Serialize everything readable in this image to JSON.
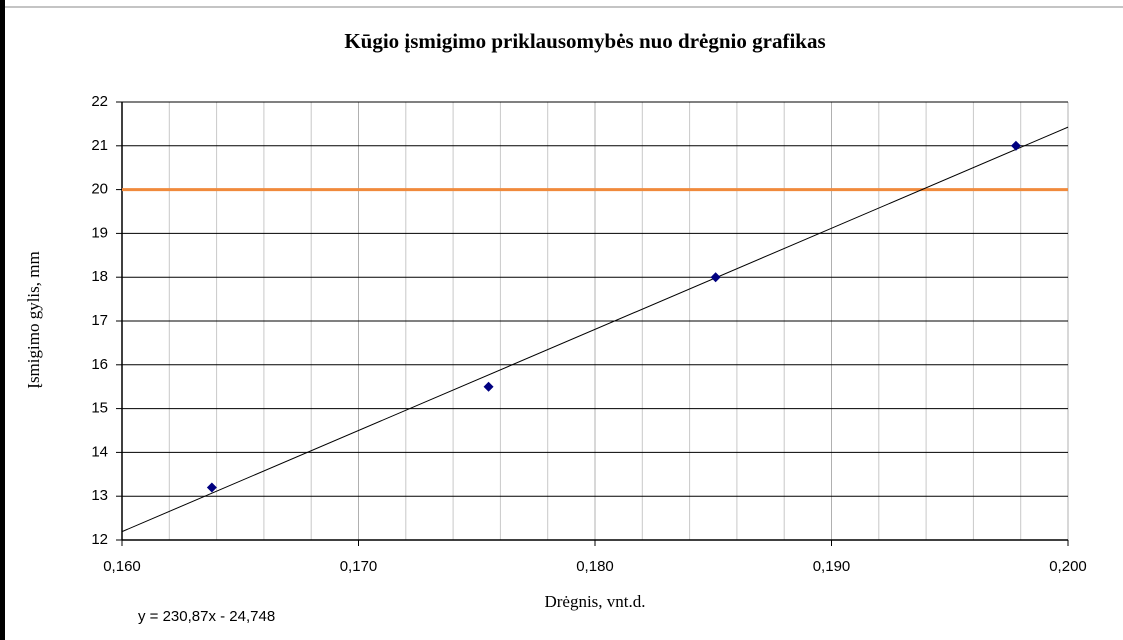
{
  "chart_data": {
    "type": "scatter",
    "title": "Kūgio įsmigimo priklausomybės nuo drėgnio grafikas",
    "xlabel": "Drėgnis, vnt.d.",
    "ylabel": "Įsmigimo gylis, mm",
    "series": [
      {
        "color": "#000080",
        "x": [
          0.1638,
          0.1755,
          0.1851,
          0.1978
        ],
        "values": [
          13.2,
          15.5,
          18,
          21
        ]
      }
    ],
    "trendline": {
      "label": "y = 230,87x - 24,748",
      "slope": 230.87,
      "intercept": -24.748,
      "color": "#000000"
    },
    "reference_line": {
      "value": 20,
      "color": "#f08a3c"
    },
    "xlim": [
      0.16,
      0.2
    ],
    "xticks": [
      {
        "value": 0.16,
        "label": "0,160"
      },
      {
        "value": 0.17,
        "label": "0,170"
      },
      {
        "value": 0.18,
        "label": "0,180"
      },
      {
        "value": 0.19,
        "label": "0,190"
      },
      {
        "value": 0.2,
        "label": "0,200"
      }
    ],
    "xgrid_minor": [
      0.162,
      0.164,
      0.166,
      0.168,
      0.172,
      0.174,
      0.176,
      0.178,
      0.182,
      0.184,
      0.186,
      0.188,
      0.192,
      0.194,
      0.196,
      0.198
    ],
    "ylim": [
      12,
      22
    ],
    "yticks": [
      12,
      13,
      14,
      15,
      16,
      17,
      18,
      19,
      20,
      21,
      22
    ],
    "grid": true
  }
}
